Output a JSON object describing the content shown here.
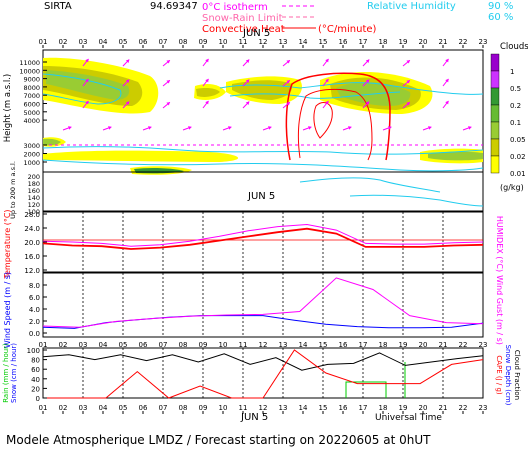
{
  "header": {
    "station": "SIRTA",
    "coords": "94.69347",
    "legend": [
      {
        "label": "0°C isotherm",
        "color": "#ff00ff",
        "style": "dashed"
      },
      {
        "label": "Snow-Rain Limit",
        "color": "#ff66aa",
        "style": "dashed"
      },
      {
        "label": "Convective Heat",
        "color": "#ff0000",
        "style": "solid",
        "unit": "(°C/minute)"
      }
    ],
    "rh": {
      "label": "Relative Humidity",
      "levels": [
        "90 %",
        "60 %"
      ],
      "color": "#22ccee"
    }
  },
  "hours": [
    "01",
    "02",
    "03",
    "04",
    "05",
    "06",
    "07",
    "08",
    "09",
    "10",
    "11",
    "12",
    "13",
    "14",
    "15",
    "16",
    "17",
    "18",
    "19",
    "20",
    "21",
    "22",
    "23"
  ],
  "date_label": "JUN  5",
  "xlabel": "Universal Time",
  "footer": "Modele Atmospherique LMDZ / Forecast starting on 20220605 at 0hUT",
  "chart_data": [
    {
      "type": "heatmap",
      "name": "clouds",
      "ylabel": "Height (m a.s.l.)",
      "ylabel2": "Up to 200 m a.s.l.",
      "yticks_upper": [
        "11000",
        "10000",
        "9000",
        "8000",
        "7000",
        "6000",
        "5000",
        "4000",
        "3000",
        "2000",
        "1000"
      ],
      "yticks_lower": [
        "200",
        "180",
        "160",
        "140",
        "120",
        "100"
      ],
      "legend_title": "Clouds",
      "legend_unit": "(g/kg)",
      "legend_levels": [
        "1",
        "0.5",
        "0.2",
        "0.1",
        "0.05",
        "0.02",
        "0.01"
      ],
      "legend_colors": [
        "#9900cc",
        "#cc33ff",
        "#339933",
        "#66bb33",
        "#99cc33",
        "#cccc00",
        "#ffff00"
      ],
      "zero_isotherm_height": 3100
    },
    {
      "type": "line",
      "name": "temperature",
      "ylabel": "Temperature (°C)",
      "ylabel2": "HUMIDEX (°C)",
      "yticks": [
        "28.0",
        "24.0",
        "20.0",
        "16.0",
        "12.0"
      ],
      "ylim": [
        12,
        28
      ],
      "series": [
        {
          "color": "#ff0000",
          "values": [
            19.6,
            19.0,
            18.8,
            18.0,
            18.4,
            19.2,
            20.4,
            21.6,
            22.8,
            23.8,
            22.4,
            18.6,
            18.6,
            18.6,
            19.0,
            19.2
          ]
        },
        {
          "color": "#ff00ff",
          "values": [
            20.2,
            20.0,
            19.6,
            18.8,
            19.2,
            20.2,
            21.6,
            23.2,
            24.4,
            25.0,
            23.4,
            19.6,
            19.4,
            19.4,
            19.8,
            20.0
          ]
        }
      ]
    },
    {
      "type": "line",
      "name": "wind",
      "ylabel": "Wind Speed (m / s)",
      "ylabel2": "Wind Gust (m / s)",
      "yticks": [
        "8.0",
        "6.0",
        "4.0",
        "2.0",
        "0.0"
      ],
      "ylim": [
        0,
        10
      ],
      "series": [
        {
          "color": "#0000ff",
          "values": [
            1.0,
            0.8,
            1.8,
            2.3,
            2.7,
            3.0,
            3.0,
            3.0,
            2.2,
            1.5,
            1.1,
            0.9,
            0.9,
            1.0,
            1.7
          ]
        },
        {
          "color": "#ff00ff",
          "values": [
            1.2,
            1.0,
            2.0,
            2.5,
            2.9,
            3.1,
            3.2,
            3.7,
            9.5,
            7.5,
            3.0,
            1.8,
            1.6
          ]
        }
      ]
    },
    {
      "type": "line",
      "name": "precip",
      "ylabel": "Rain (mm / hour)",
      "ylabel_b": "Snow (cm / hour)",
      "ylabel2": "CAPE (J / g)",
      "ylabel2_b": "Snow Depth (cm)",
      "ylabel2_c": "Cloud Fraction",
      "yticks": [
        "100",
        "80",
        "60",
        "40",
        "20",
        "0"
      ],
      "ylim": [
        0,
        100
      ],
      "series": [
        {
          "color": "#000000",
          "values": [
            86,
            90,
            80,
            90,
            78,
            90,
            75,
            92,
            70,
            84,
            58,
            70,
            72,
            94,
            68,
            75,
            82,
            88
          ]
        },
        {
          "color": "#ff0000",
          "values": [
            0,
            0,
            0,
            55,
            0,
            25,
            0,
            0,
            100,
            52,
            30,
            30,
            30,
            70,
            80
          ]
        }
      ]
    }
  ]
}
